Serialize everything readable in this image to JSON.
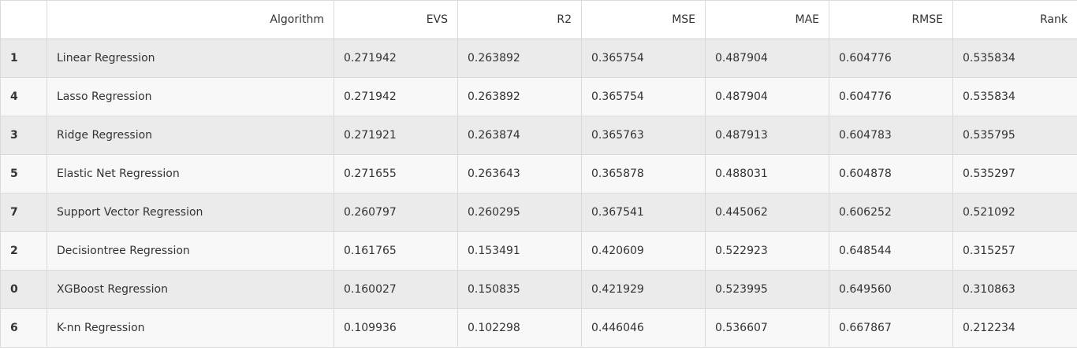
{
  "columns": {
    "index": "",
    "algorithm": "Algorithm",
    "evs": "EVS",
    "r2": "R2",
    "mse": "MSE",
    "mae": "MAE",
    "rmse": "RMSE",
    "rank": "Rank"
  },
  "rows": [
    {
      "idx": "1",
      "algorithm": "Linear Regression",
      "evs": "0.271942",
      "r2": "0.263892",
      "mse": "0.365754",
      "mae": "0.487904",
      "rmse": "0.604776",
      "rank": "0.535834"
    },
    {
      "idx": "4",
      "algorithm": "Lasso Regression",
      "evs": "0.271942",
      "r2": "0.263892",
      "mse": "0.365754",
      "mae": "0.487904",
      "rmse": "0.604776",
      "rank": "0.535834"
    },
    {
      "idx": "3",
      "algorithm": "Ridge Regression",
      "evs": "0.271921",
      "r2": "0.263874",
      "mse": "0.365763",
      "mae": "0.487913",
      "rmse": "0.604783",
      "rank": "0.535795"
    },
    {
      "idx": "5",
      "algorithm": "Elastic Net Regression",
      "evs": "0.271655",
      "r2": "0.263643",
      "mse": "0.365878",
      "mae": "0.488031",
      "rmse": "0.604878",
      "rank": "0.535297"
    },
    {
      "idx": "7",
      "algorithm": "Support Vector Regression",
      "evs": "0.260797",
      "r2": "0.260295",
      "mse": "0.367541",
      "mae": "0.445062",
      "rmse": "0.606252",
      "rank": "0.521092"
    },
    {
      "idx": "2",
      "algorithm": "Decisiontree Regression",
      "evs": "0.161765",
      "r2": "0.153491",
      "mse": "0.420609",
      "mae": "0.522923",
      "rmse": "0.648544",
      "rank": "0.315257"
    },
    {
      "idx": "0",
      "algorithm": "XGBoost Regression",
      "evs": "0.160027",
      "r2": "0.150835",
      "mse": "0.421929",
      "mae": "0.523995",
      "rmse": "0.649560",
      "rank": "0.310863"
    },
    {
      "idx": "6",
      "algorithm": "K-nn Regression",
      "evs": "0.109936",
      "r2": "0.102298",
      "mse": "0.446046",
      "mae": "0.536607",
      "rmse": "0.667867",
      "rank": "0.212234"
    }
  ]
}
